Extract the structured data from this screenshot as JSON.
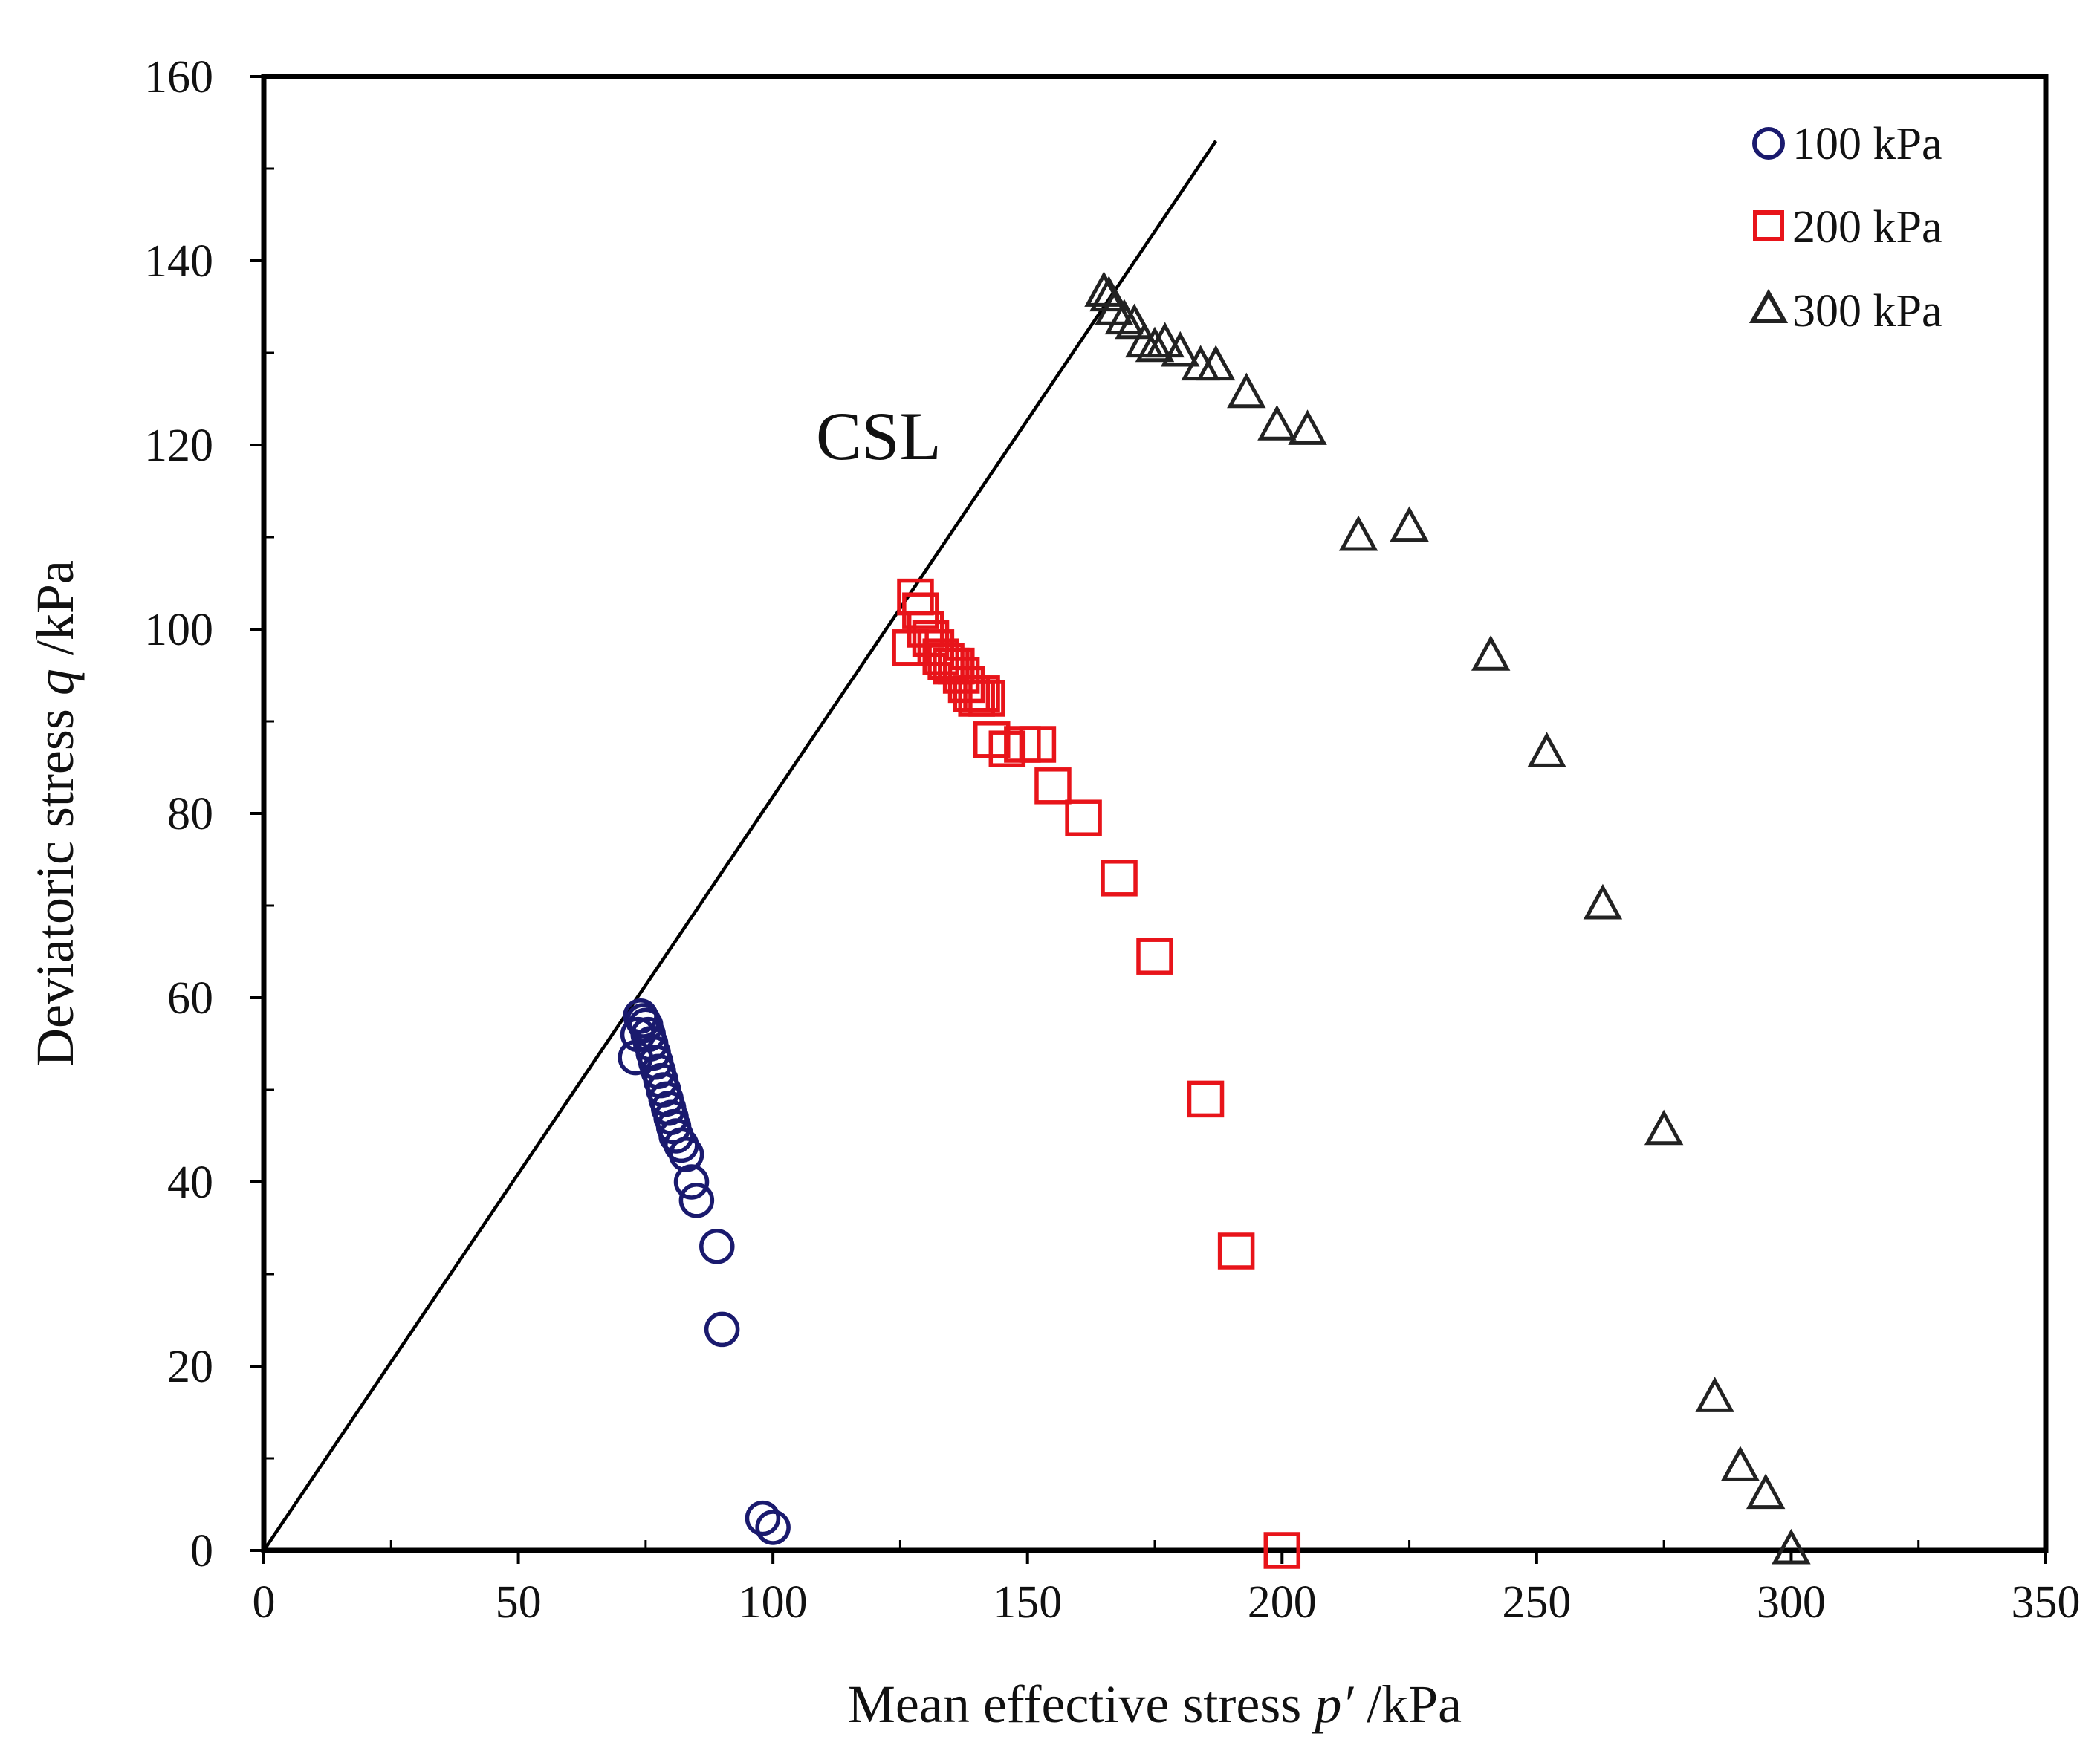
{
  "chart_data": {
    "type": "scatter",
    "title": "",
    "xlabel": {
      "prefix": "Mean effective stress ",
      "symbol": "p′",
      "suffix": " /kPa"
    },
    "ylabel": {
      "prefix": "Deviatoric stress ",
      "symbol": "q",
      "suffix": " /kPa"
    },
    "xlim": [
      0,
      350
    ],
    "ylim": [
      0,
      160
    ],
    "xticks": [
      0,
      50,
      100,
      150,
      200,
      250,
      300,
      350
    ],
    "yticks": [
      0,
      20,
      40,
      60,
      80,
      100,
      120,
      140,
      160
    ],
    "xtick_labels": [
      "0",
      "50",
      "100",
      "150",
      "200",
      "250",
      "300",
      "350"
    ],
    "ytick_labels": [
      "0",
      "20",
      "40",
      "60",
      "80",
      "100",
      "120",
      "140",
      "160"
    ],
    "grid": false,
    "legend_position": "top-right",
    "annotations": [
      {
        "text": "CSL"
      }
    ],
    "lines": [
      {
        "name": "CSL",
        "x": [
          0,
          187
        ],
        "y": [
          0,
          153
        ],
        "color": "#000000"
      }
    ],
    "series": [
      {
        "name": "100 kPa",
        "marker": "circle",
        "color": "#1a1a6e",
        "x": [
          100,
          98,
          90,
          89,
          85,
          84,
          83,
          82,
          81,
          80.5,
          80,
          79.5,
          79,
          78.5,
          78,
          77.5,
          77,
          76.5,
          76,
          75.5,
          75,
          74.5,
          74,
          73.5,
          73
        ],
        "y": [
          2.5,
          3.5,
          24,
          33,
          38,
          40,
          43,
          44,
          45,
          46,
          47,
          48,
          49,
          50,
          51,
          52,
          53,
          54,
          55,
          56,
          57,
          57.5,
          58,
          56,
          53.5
        ]
      },
      {
        "name": "200 kPa",
        "marker": "square",
        "color": "#e8141a",
        "x": [
          200,
          191,
          185,
          175,
          168,
          161,
          155,
          152,
          149,
          146,
          143,
          142,
          141,
          140,
          139,
          138,
          137,
          136,
          135,
          134,
          133,
          132,
          131,
          130,
          129,
          128,
          127
        ],
        "y": [
          0,
          32.5,
          49,
          64.5,
          73,
          79.5,
          83,
          87.5,
          87.5,
          87,
          88,
          92.5,
          93,
          92.5,
          93,
          94,
          95,
          96,
          96,
          96.5,
          97,
          98,
          99,
          100,
          102,
          103.5,
          98
        ]
      },
      {
        "name": "300 kPa",
        "marker": "triangle",
        "color": "#222222",
        "x": [
          300,
          295,
          290,
          285,
          275,
          263,
          252,
          241,
          225,
          215,
          205,
          199,
          193,
          187,
          184,
          180,
          177,
          175,
          173,
          171,
          169,
          167,
          166,
          165
        ],
        "y": [
          0,
          6,
          9,
          16.5,
          45.5,
          70,
          86.5,
          97,
          111,
          110,
          121.5,
          122,
          125.5,
          128.5,
          128.5,
          130,
          131,
          130.5,
          131,
          133,
          133.5,
          134.5,
          136,
          136.5
        ]
      }
    ]
  }
}
